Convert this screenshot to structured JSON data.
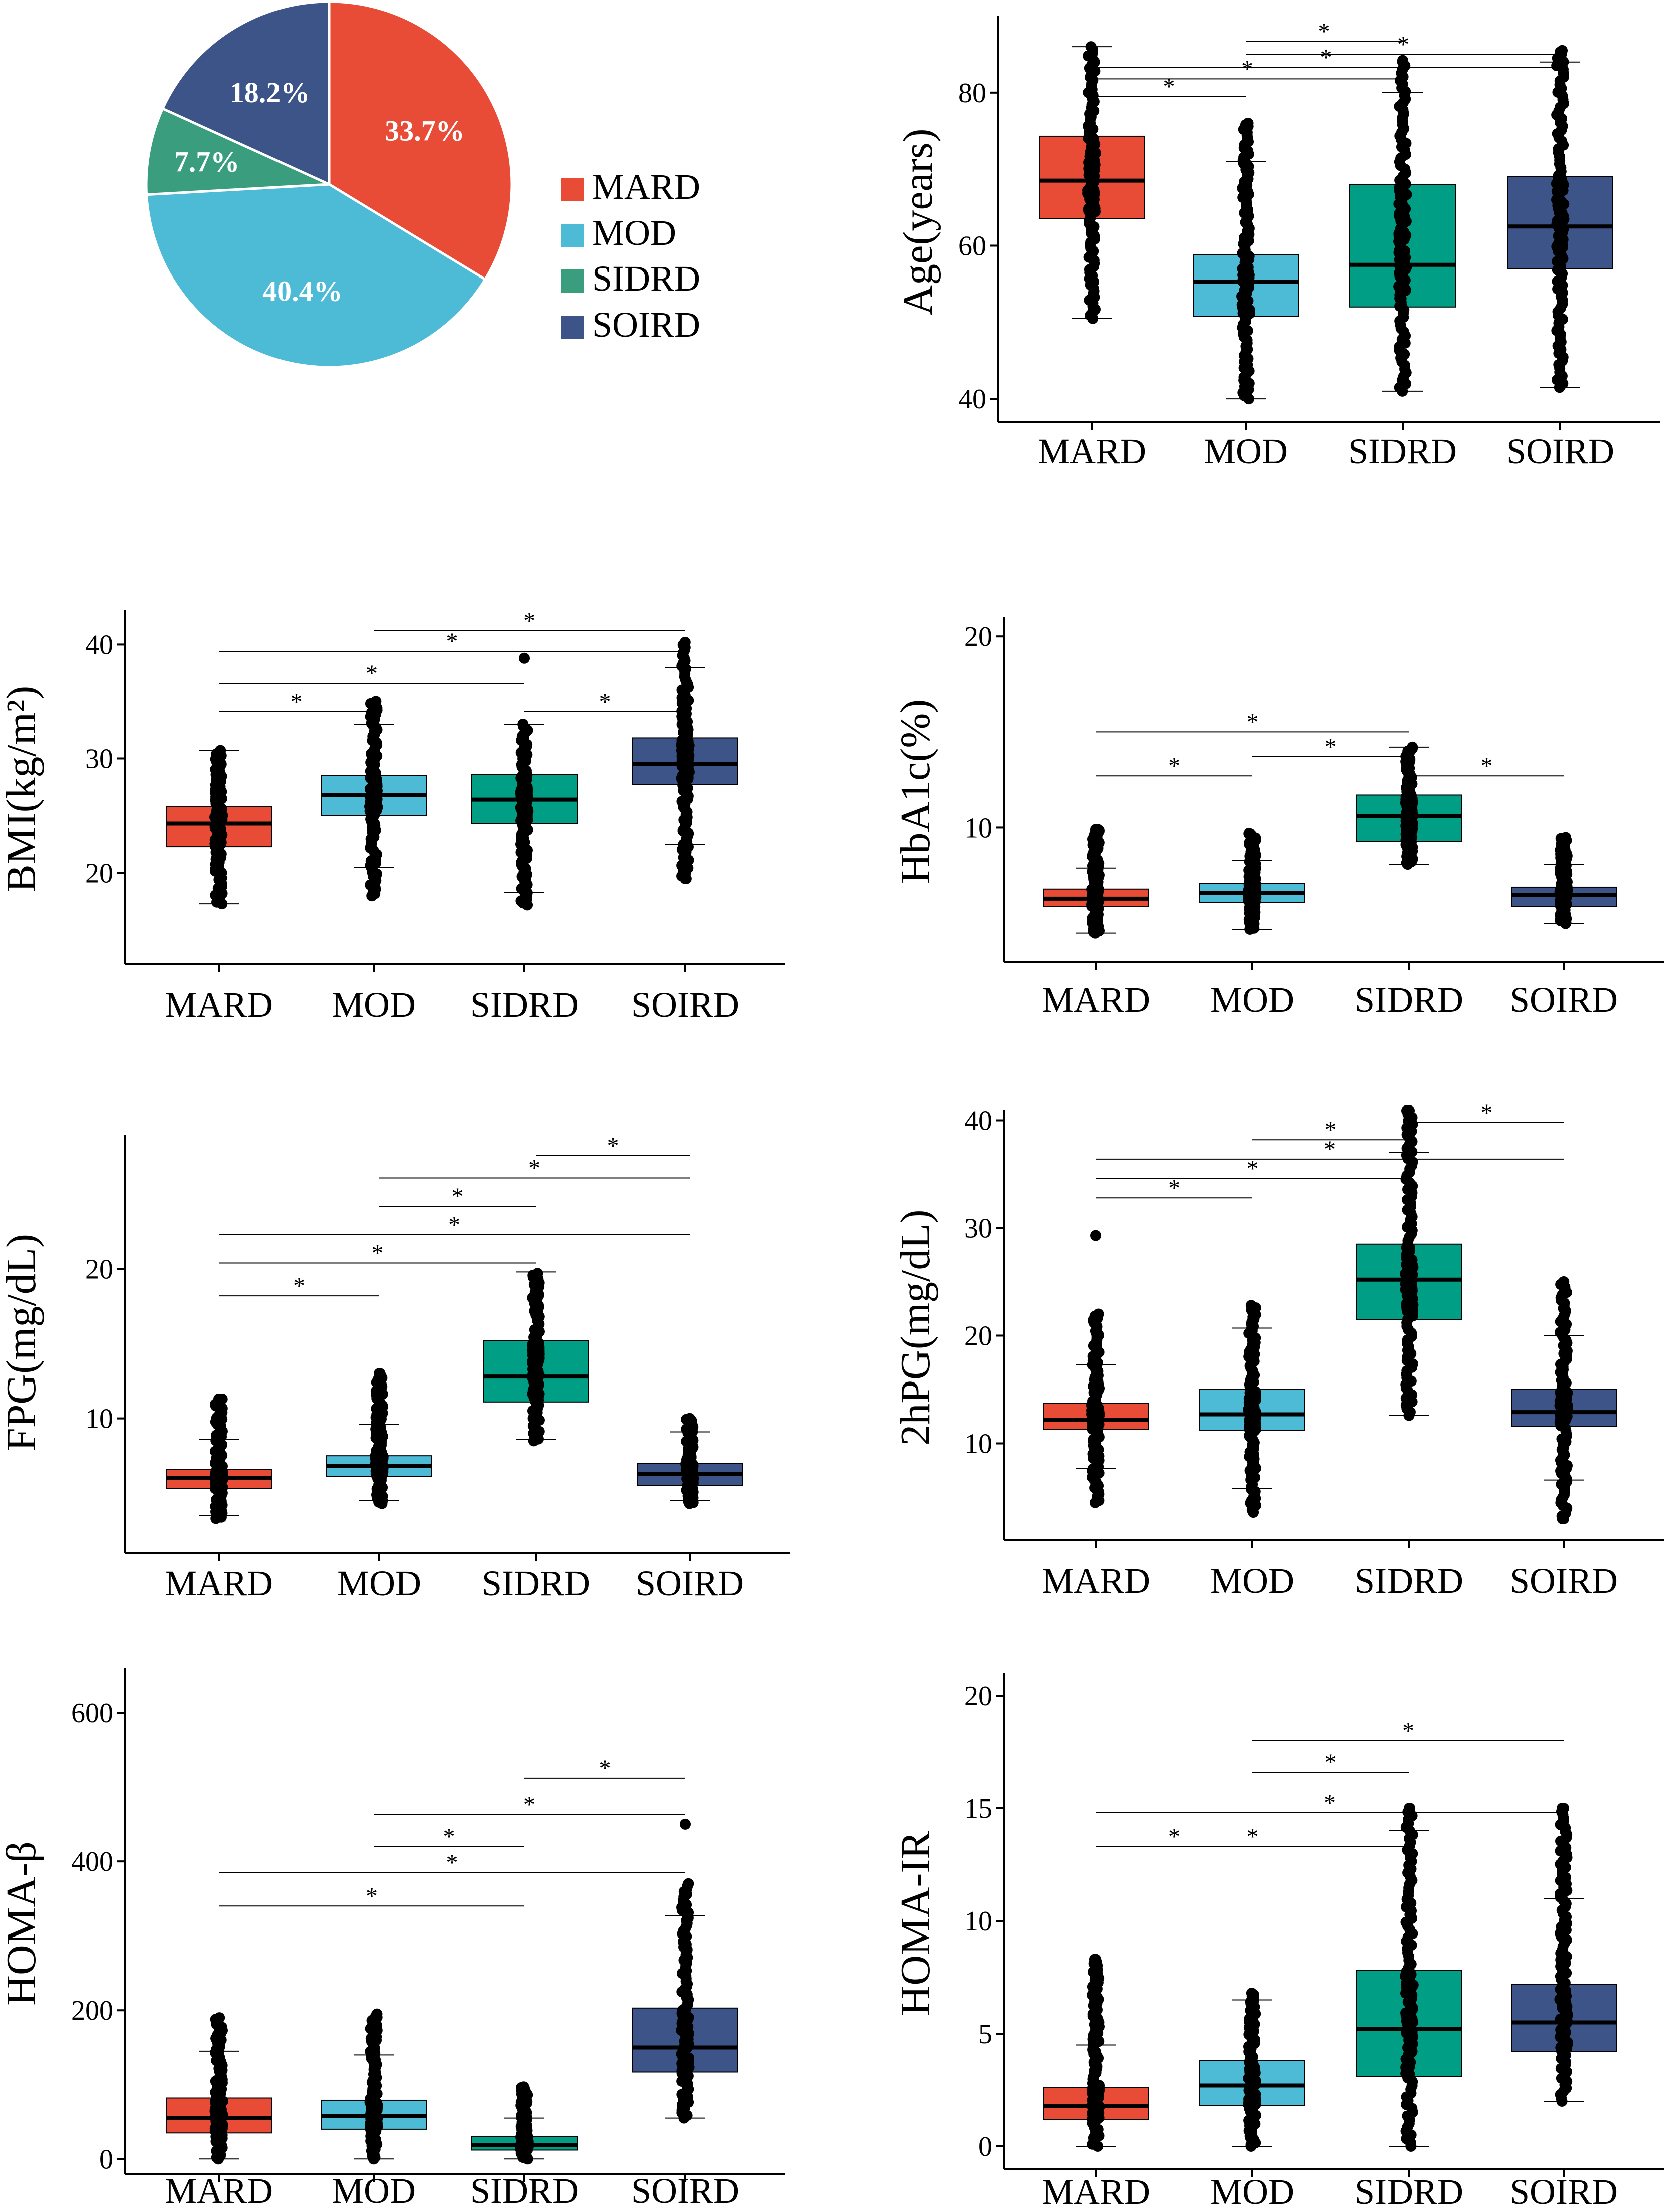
{
  "colors": {
    "MARD": "#E84B36",
    "MOD": "#4DBAD6",
    "SIDRD": "#009E84",
    "SOIRD": "#3C5488",
    "pie_SIDRD": "#3A9E7E"
  },
  "chart_data": [
    {
      "type": "pie",
      "categories": [
        "MARD",
        "MOD",
        "SIDRD",
        "SOIRD"
      ],
      "values": [
        33.7,
        40.4,
        7.7,
        18.2
      ],
      "labels": [
        "33.7%",
        "40.4%",
        "7.7%",
        "18.2%"
      ],
      "legend": [
        "MARD",
        "MOD",
        "SIDRD",
        "SOIRD"
      ]
    },
    {
      "type": "box",
      "ylabel": "Age(years)",
      "categories": [
        "MARD",
        "MOD",
        "SIDRD",
        "SOIRD"
      ],
      "yticks": [
        40,
        60,
        80
      ],
      "ylim": [
        37,
        90
      ],
      "boxes": [
        {
          "q1": 63.5,
          "median": 68.5,
          "q3": 74.3,
          "wlo": 50.5,
          "whi": 86
        },
        {
          "q1": 50.8,
          "median": 55.3,
          "q3": 58.8,
          "wlo": 40,
          "whi": 71
        },
        {
          "q1": 52,
          "median": 57.5,
          "q3": 68,
          "wlo": 41,
          "whi": 80
        },
        {
          "q1": 57,
          "median": 62.5,
          "q3": 69,
          "wlo": 41.5,
          "whi": 84
        }
      ],
      "ranges": [
        [
          50.5,
          86
        ],
        [
          40,
          76
        ],
        [
          41,
          84
        ],
        [
          41.5,
          85.5
        ]
      ],
      "outliers": [
        [],
        [
          [
            1,
            75.8
          ],
          [
            1,
            70.8
          ]
        ],
        [
          [
            2,
            84.2
          ]
        ],
        [
          [
            3,
            85.3
          ]
        ]
      ],
      "sig": [
        {
          "a": 0,
          "b": 1,
          "y": 79.5,
          "label": "*"
        },
        {
          "a": 0,
          "b": 2,
          "y": 81.8,
          "label": "*"
        },
        {
          "a": 0,
          "b": 3,
          "y": 83.3,
          "label": "*"
        },
        {
          "a": 1,
          "b": 2,
          "y": 86.7,
          "label": "*"
        },
        {
          "a": 1,
          "b": 3,
          "y": 85,
          "label": "*"
        }
      ]
    },
    {
      "type": "box",
      "ylabel": "BMI(kg/m²)",
      "categories": [
        "MARD",
        "MOD",
        "SIDRD",
        "SOIRD"
      ],
      "yticks": [
        20,
        30,
        40
      ],
      "ylim": [
        12,
        43
      ],
      "boxes": [
        {
          "q1": 22.3,
          "median": 24.3,
          "q3": 25.8,
          "wlo": 17.3,
          "whi": 30.7
        },
        {
          "q1": 25,
          "median": 26.8,
          "q3": 28.5,
          "wlo": 20.5,
          "whi": 33
        },
        {
          "q1": 24.3,
          "median": 26.4,
          "q3": 28.6,
          "wlo": 18.3,
          "whi": 33
        },
        {
          "q1": 27.7,
          "median": 29.5,
          "q3": 31.8,
          "wlo": 22.5,
          "whi": 38
        }
      ],
      "ranges": [
        [
          17.3,
          30.7
        ],
        [
          18,
          35
        ],
        [
          17.2,
          33
        ],
        [
          19.5,
          40.2
        ]
      ],
      "outliers": [
        [],
        [
          [
            1,
            18.2
          ],
          [
            1,
            19
          ]
        ],
        [
          [
            2,
            38.8
          ]
        ],
        [
          [
            3,
            19.5
          ]
        ]
      ],
      "sig": [
        {
          "a": 0,
          "b": 1,
          "y": 34.1,
          "label": "*"
        },
        {
          "a": 0,
          "b": 2,
          "y": 36.6,
          "label": "*"
        },
        {
          "a": 0,
          "b": 3,
          "y": 39.4,
          "label": "*"
        },
        {
          "a": 1,
          "b": 3,
          "y": 41.2,
          "label": "*"
        },
        {
          "a": 2,
          "b": 3,
          "y": 34.1,
          "label": "*"
        }
      ]
    },
    {
      "type": "box",
      "ylabel": "HbA1c(%)",
      "categories": [
        "MARD",
        "MOD",
        "SIDRD",
        "SOIRD"
      ],
      "yticks": [
        10,
        20
      ],
      "ylim": [
        3,
        21
      ],
      "boxes": [
        {
          "q1": 5.9,
          "median": 6.3,
          "q3": 6.8,
          "wlo": 4.5,
          "whi": 7.9
        },
        {
          "q1": 6.1,
          "median": 6.6,
          "q3": 7.1,
          "wlo": 4.7,
          "whi": 8.3
        },
        {
          "q1": 9.3,
          "median": 10.6,
          "q3": 11.7,
          "wlo": 8.1,
          "whi": 14.2
        },
        {
          "q1": 5.9,
          "median": 6.5,
          "q3": 6.9,
          "wlo": 5,
          "whi": 8.1
        }
      ],
      "ranges": [
        [
          4.5,
          9.9
        ],
        [
          4.7,
          9.7
        ],
        [
          8.1,
          14.2
        ],
        [
          5,
          9.5
        ]
      ],
      "outliers": [
        [
          [
            0,
            9.9
          ],
          [
            0,
            9.6
          ]
        ],
        [],
        [],
        []
      ],
      "sig": [
        {
          "a": 0,
          "b": 1,
          "y": 12.7,
          "label": "*"
        },
        {
          "a": 0,
          "b": 2,
          "y": 15,
          "label": "*"
        },
        {
          "a": 1,
          "b": 2,
          "y": 13.7,
          "label": "*"
        },
        {
          "a": 2,
          "b": 3,
          "y": 12.7,
          "label": "*"
        }
      ]
    },
    {
      "type": "box",
      "ylabel": "FPG(mg/dL)",
      "categories": [
        "MARD",
        "MOD",
        "SIDRD",
        "SOIRD"
      ],
      "yticks": [
        10,
        20
      ],
      "ylim": [
        1,
        29
      ],
      "boxes": [
        {
          "q1": 5.3,
          "median": 6.0,
          "q3": 6.6,
          "wlo": 3.5,
          "whi": 8.6
        },
        {
          "q1": 6.1,
          "median": 6.8,
          "q3": 7.5,
          "wlo": 4.5,
          "whi": 9.6
        },
        {
          "q1": 11.1,
          "median": 12.8,
          "q3": 15.2,
          "wlo": 8.6,
          "whi": 19.8
        },
        {
          "q1": 5.5,
          "median": 6.3,
          "q3": 7.0,
          "wlo": 4.5,
          "whi": 9.1
        }
      ],
      "ranges": [
        [
          3.3,
          11.3
        ],
        [
          4.3,
          13
        ],
        [
          8.5,
          19.7
        ],
        [
          4.3,
          10
        ]
      ],
      "outliers": [
        [
          [
            0,
            11.3
          ],
          [
            0,
            10.9
          ]
        ],
        [
          [
            1,
            13
          ]
        ],
        [],
        []
      ],
      "sig": [
        {
          "a": 0,
          "b": 1,
          "y": 18.2,
          "label": "*"
        },
        {
          "a": 0,
          "b": 2,
          "y": 20.4,
          "label": "*"
        },
        {
          "a": 0,
          "b": 3,
          "y": 22.3,
          "label": "*"
        },
        {
          "a": 1,
          "b": 2,
          "y": 24.2,
          "label": "*"
        },
        {
          "a": 1,
          "b": 3,
          "y": 26.1,
          "label": "*"
        },
        {
          "a": 2,
          "b": 3,
          "y": 27.6,
          "label": "*"
        }
      ]
    },
    {
      "type": "box",
      "ylabel": "2hPG(mg/dL)",
      "categories": [
        "MARD",
        "MOD",
        "SIDRD",
        "SOIRD"
      ],
      "yticks": [
        10,
        20,
        30,
        40
      ],
      "ylim": [
        1,
        41
      ],
      "boxes": [
        {
          "q1": 11.3,
          "median": 12.2,
          "q3": 13.7,
          "wlo": 7.7,
          "whi": 17.3
        },
        {
          "q1": 11.2,
          "median": 12.7,
          "q3": 15,
          "wlo": 5.8,
          "whi": 20.7
        },
        {
          "q1": 21.5,
          "median": 25.2,
          "q3": 28.5,
          "wlo": 12.6,
          "whi": 37
        },
        {
          "q1": 11.6,
          "median": 12.9,
          "q3": 15,
          "wlo": 6.6,
          "whi": 20
        }
      ],
      "ranges": [
        [
          4.5,
          22
        ],
        [
          3.6,
          22.8
        ],
        [
          12.6,
          40.9
        ],
        [
          3,
          25
        ]
      ],
      "outliers": [
        [
          [
            0,
            29.3
          ]
        ],
        [],
        [
          [
            2,
            40.9
          ]
        ],
        [
          [
            3,
            3
          ],
          [
            3,
            25
          ]
        ]
      ],
      "sig": [
        {
          "a": 0,
          "b": 1,
          "y": 32.8,
          "label": "*"
        },
        {
          "a": 0,
          "b": 2,
          "y": 34.6,
          "label": "*"
        },
        {
          "a": 0,
          "b": 3,
          "y": 36.4,
          "label": "*"
        },
        {
          "a": 1,
          "b": 2,
          "y": 38.2,
          "label": "*"
        },
        {
          "a": 2,
          "b": 3,
          "y": 39.8,
          "label": "*"
        }
      ]
    },
    {
      "type": "box",
      "ylabel": "HOMA-β",
      "categories": [
        "MARD",
        "MOD",
        "SIDRD",
        "SOIRD"
      ],
      "yticks": [
        0,
        200,
        400,
        600
      ],
      "ylim": [
        -20,
        660
      ],
      "boxes": [
        {
          "q1": 35,
          "median": 55,
          "q3": 82,
          "wlo": 0,
          "whi": 145
        },
        {
          "q1": 40,
          "median": 58,
          "q3": 79,
          "wlo": 0,
          "whi": 140
        },
        {
          "q1": 12,
          "median": 19,
          "q3": 30,
          "wlo": 0,
          "whi": 55
        },
        {
          "q1": 117,
          "median": 150,
          "q3": 203,
          "wlo": 55,
          "whi": 327
        }
      ],
      "ranges": [
        [
          0,
          190
        ],
        [
          0,
          195
        ],
        [
          0,
          97
        ],
        [
          55,
          370
        ]
      ],
      "outliers": [
        [],
        [],
        [
          [
            2,
            95
          ]
        ],
        [
          [
            3,
            450
          ]
        ]
      ],
      "sig": [
        {
          "a": 0,
          "b": 2,
          "y": 340,
          "label": "*"
        },
        {
          "a": 0,
          "b": 3,
          "y": 385,
          "label": "*"
        },
        {
          "a": 1,
          "b": 2,
          "y": 420,
          "label": "*"
        },
        {
          "a": 1,
          "b": 3,
          "y": 463,
          "label": "*"
        },
        {
          "a": 2,
          "b": 3,
          "y": 512,
          "label": "*"
        }
      ]
    },
    {
      "type": "box",
      "ylabel": "HOMA-IR",
      "categories": [
        "MARD",
        "MOD",
        "SIDRD",
        "SOIRD"
      ],
      "yticks": [
        0,
        5,
        10,
        15,
        20
      ],
      "ylim": [
        -1,
        21
      ],
      "boxes": [
        {
          "q1": 1.2,
          "median": 1.8,
          "q3": 2.6,
          "wlo": 0,
          "whi": 4.5
        },
        {
          "q1": 1.8,
          "median": 2.7,
          "q3": 3.8,
          "wlo": 0,
          "whi": 6.5
        },
        {
          "q1": 3.1,
          "median": 5.2,
          "q3": 7.8,
          "wlo": 0,
          "whi": 14
        },
        {
          "q1": 4.2,
          "median": 5.5,
          "q3": 7.2,
          "wlo": 2,
          "whi": 11
        }
      ],
      "ranges": [
        [
          0,
          8.3
        ],
        [
          0,
          6.8
        ],
        [
          0,
          15
        ],
        [
          2,
          15
        ]
      ],
      "outliers": [
        [
          [
            0,
            8.3
          ],
          [
            0,
            7.5
          ],
          [
            0,
            6.9
          ]
        ],
        [],
        [
          [
            2,
            15
          ]
        ],
        [
          [
            3,
            15
          ]
        ]
      ],
      "sig": [
        {
          "a": 0,
          "b": 1,
          "y": 13.3,
          "label": "*"
        },
        {
          "a": 0,
          "b": 2,
          "y": 13.3,
          "label": "*"
        },
        {
          "a": 0,
          "b": 3,
          "y": 14.8,
          "label": "*"
        },
        {
          "a": 1,
          "b": 2,
          "y": 16.6,
          "label": "*"
        },
        {
          "a": 1,
          "b": 3,
          "y": 18,
          "label": "*"
        }
      ]
    }
  ]
}
